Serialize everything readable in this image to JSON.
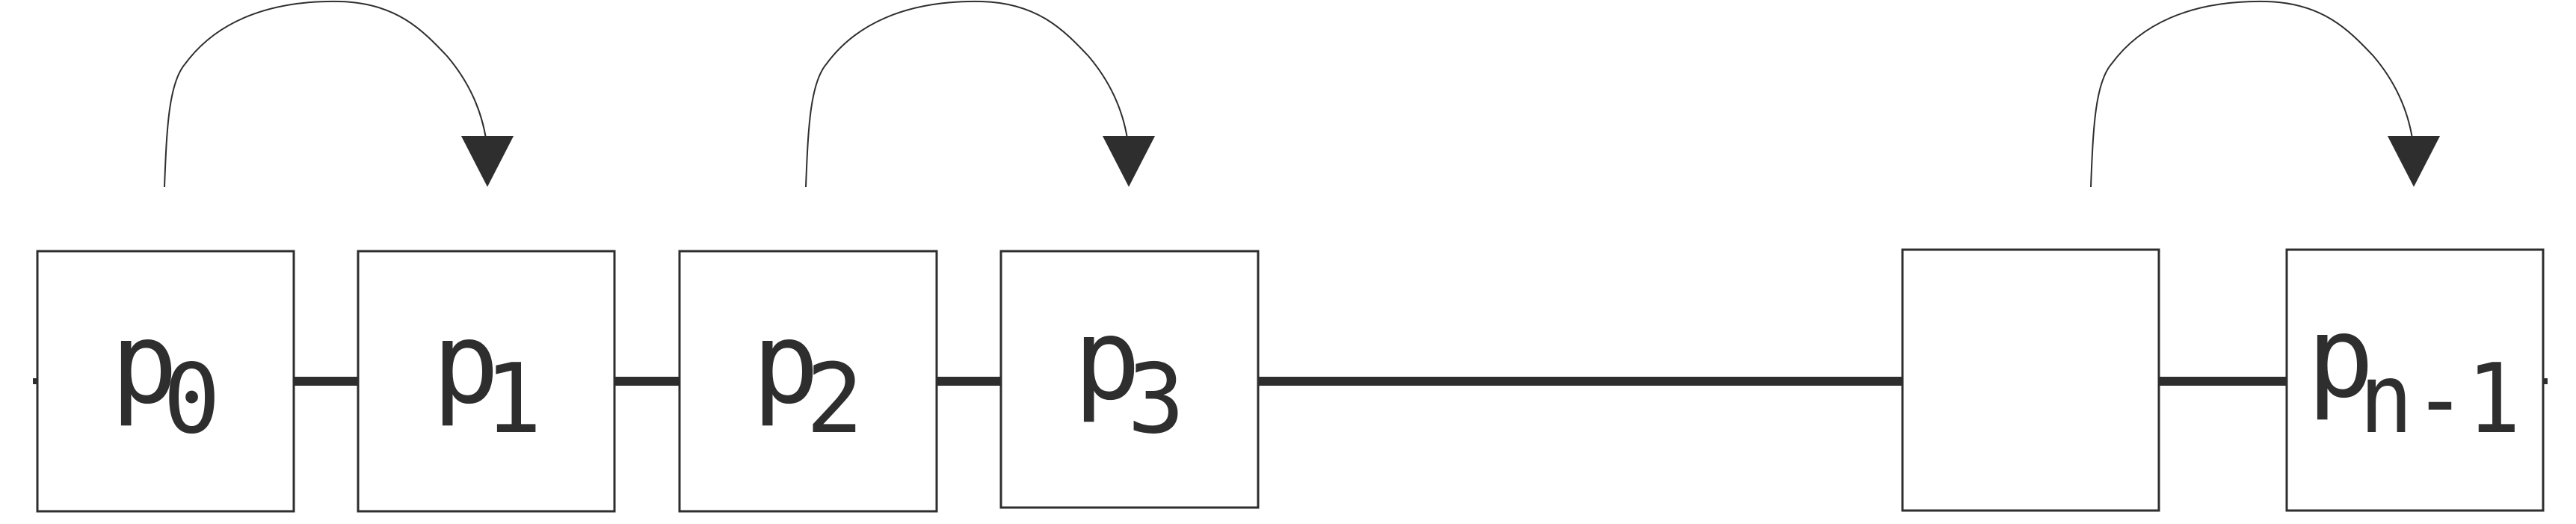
{
  "diagram": {
    "nodes": [
      {
        "id": "n0",
        "base": "p",
        "sub": "0"
      },
      {
        "id": "n1",
        "base": "p",
        "sub": "1"
      },
      {
        "id": "n2",
        "base": "p",
        "sub": "2"
      },
      {
        "id": "n3",
        "base": "p",
        "sub": "3"
      },
      {
        "id": "n4",
        "base": "",
        "sub": ""
      },
      {
        "id": "n5",
        "base": "p",
        "sub": "n-1"
      }
    ],
    "edges": [
      {
        "from": "n0",
        "to": "n1",
        "kind": "line"
      },
      {
        "from": "n1",
        "to": "n2",
        "kind": "line"
      },
      {
        "from": "n2",
        "to": "n3",
        "kind": "line"
      },
      {
        "from": "n3",
        "to": "n4",
        "kind": "line"
      },
      {
        "from": "n4",
        "to": "n5",
        "kind": "line"
      },
      {
        "from": "n0",
        "to": "n1",
        "kind": "curved-arrow"
      },
      {
        "from": "n2",
        "to": "n3",
        "kind": "curved-arrow"
      },
      {
        "from": "n4",
        "to": "n5",
        "kind": "curved-arrow"
      }
    ],
    "colors": {
      "stroke": "#2e2e2e",
      "box_fill": "#ffffff",
      "background": "#ffffff"
    }
  }
}
